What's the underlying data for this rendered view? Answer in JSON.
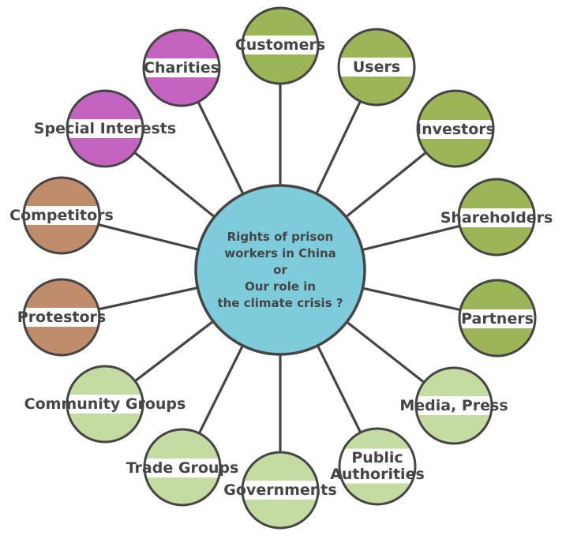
{
  "center": {
    "lines": [
      "Rights of prison",
      "workers in China",
      "or",
      "Our role in",
      "the climate crisis ?"
    ]
  },
  "stakeholders": [
    {
      "id": "customers",
      "lines": [
        "Customers"
      ],
      "color": "#9cb556"
    },
    {
      "id": "users",
      "lines": [
        "Users"
      ],
      "color": "#9cb556"
    },
    {
      "id": "investors",
      "lines": [
        "Investors"
      ],
      "color": "#9cb556"
    },
    {
      "id": "shareholders",
      "lines": [
        "Shareholders"
      ],
      "color": "#9cb556"
    },
    {
      "id": "partners",
      "lines": [
        "Partners"
      ],
      "color": "#9cb556"
    },
    {
      "id": "media-press",
      "lines": [
        "Media, Press"
      ],
      "color": "#c4dba2"
    },
    {
      "id": "public-authorities",
      "lines": [
        "Public",
        "Authorities"
      ],
      "color": "#c4dba2"
    },
    {
      "id": "governments",
      "lines": [
        "Governments"
      ],
      "color": "#c4dba2"
    },
    {
      "id": "trade-groups",
      "lines": [
        "Trade Groups"
      ],
      "color": "#c4dba2"
    },
    {
      "id": "community-groups",
      "lines": [
        "Community Groups"
      ],
      "color": "#c4dba2"
    },
    {
      "id": "protestors",
      "lines": [
        "Protestors"
      ],
      "color": "#c08d6c"
    },
    {
      "id": "competitors",
      "lines": [
        "Competitors"
      ],
      "color": "#c08d6c"
    },
    {
      "id": "special-interests",
      "lines": [
        "Special Interests"
      ],
      "color": "#c464c0"
    },
    {
      "id": "charities",
      "lines": [
        "Charities"
      ],
      "color": "#c464c0"
    }
  ],
  "colors": {
    "center_fill": "#7ecbdc",
    "outline": "#454545",
    "text": "#454545",
    "band": "#ffffff"
  }
}
